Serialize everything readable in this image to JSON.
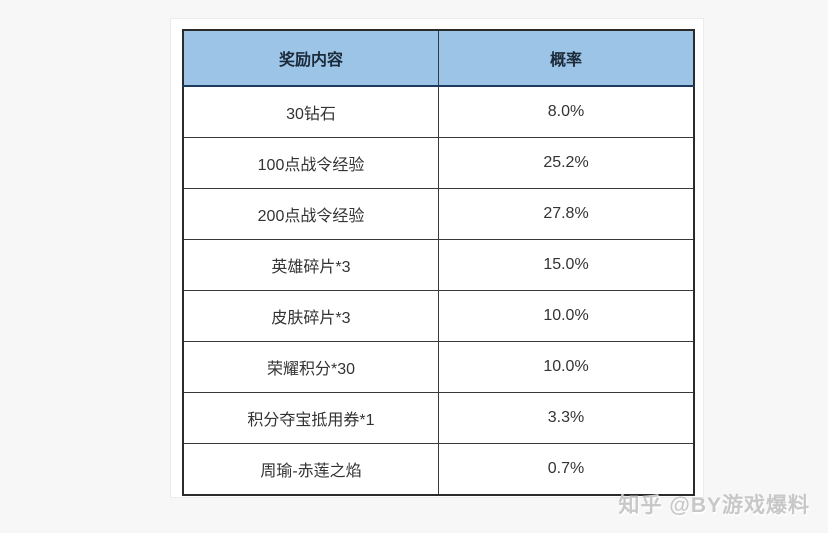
{
  "colors": {
    "page_bg": "#f7f7f7",
    "panel_bg": "#ffffff",
    "header_bg": "#9cc4e7",
    "header_border": "#1f3a5f",
    "header_text": "#1c2b3a",
    "border": "#3a3a3a",
    "border_strong": "#2b2b2b",
    "text": "#333333",
    "watermark": "#c8c8c8"
  },
  "watermark": {
    "text": "知乎 @BY游戏爆料"
  },
  "chart_data": {
    "type": "table",
    "columns": [
      "奖励内容",
      "概率"
    ],
    "rows": [
      {
        "reward": "30钻石",
        "probability": "8.0%",
        "probability_value": 8.0
      },
      {
        "reward": "100点战令经验",
        "probability": "25.2%",
        "probability_value": 25.2
      },
      {
        "reward": "200点战令经验",
        "probability": "27.8%",
        "probability_value": 27.8
      },
      {
        "reward": "英雄碎片*3",
        "probability": "15.0%",
        "probability_value": 15.0
      },
      {
        "reward": "皮肤碎片*3",
        "probability": "10.0%",
        "probability_value": 10.0
      },
      {
        "reward": "荣耀积分*30",
        "probability": "10.0%",
        "probability_value": 10.0
      },
      {
        "reward": "积分夺宝抵用券*1",
        "probability": "3.3%",
        "probability_value": 3.3
      },
      {
        "reward": "周瑜-赤莲之焰",
        "probability": "0.7%",
        "probability_value": 0.7
      }
    ],
    "layout": {
      "header_fill": "#9cc4e7",
      "grid": true,
      "column_alignment": "center"
    }
  }
}
